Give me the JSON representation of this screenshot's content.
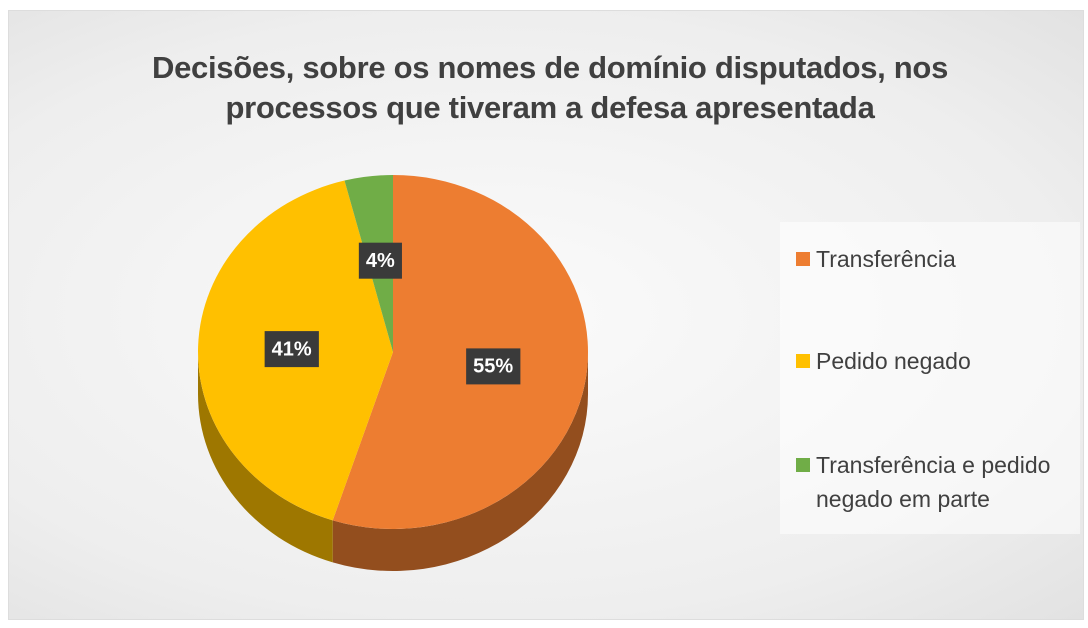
{
  "chart_data": {
    "type": "pie",
    "title": "Decisões, sobre os nomes de domínio disputados, nos processos que tiveram a defesa apresentada",
    "categories": [
      "Transferência",
      "Pedido negado",
      "Transferência e pedido negado em parte"
    ],
    "values": [
      55,
      41,
      4
    ],
    "value_labels": [
      "55%",
      "41%",
      "4%"
    ],
    "colors": [
      "#ed7d31",
      "#ffc000",
      "#70ad47"
    ],
    "legend": "right"
  }
}
